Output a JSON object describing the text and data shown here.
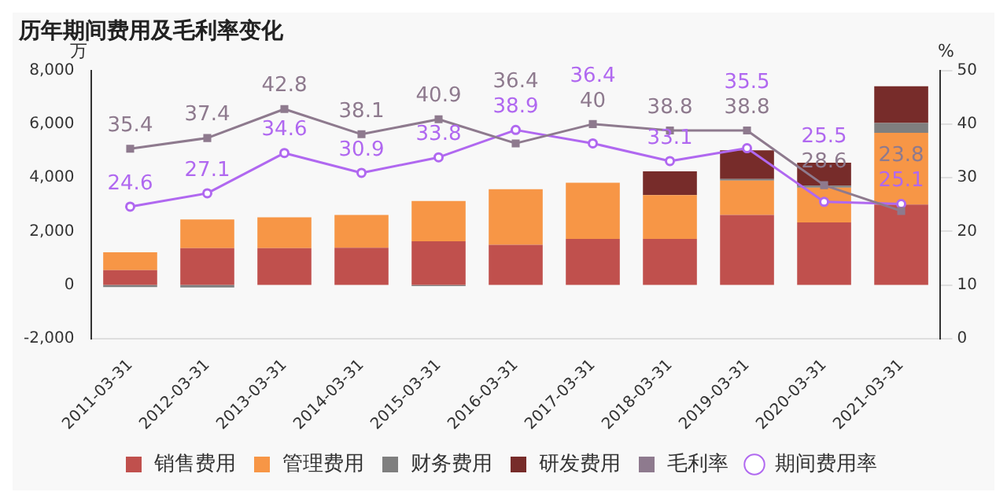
{
  "chart_data": {
    "type": "bar",
    "title": "历年期间费用及毛利率变化",
    "ylabel": "万",
    "y2label": "%",
    "stacked": true,
    "categories": [
      "2011-03-31",
      "2012-03-31",
      "2013-03-31",
      "2014-03-31",
      "2015-03-31",
      "2016-03-31",
      "2017-03-31",
      "2018-03-31",
      "2019-03-31",
      "2020-03-31",
      "2021-03-31"
    ],
    "series": [
      {
        "name": "销售费用",
        "color": "#c0504d",
        "values": [
          550,
          1370,
          1370,
          1390,
          1630,
          1500,
          1720,
          1720,
          2610,
          2330,
          3000
        ]
      },
      {
        "name": "管理费用",
        "color": "#f79646",
        "values": [
          670,
          1070,
          1150,
          1220,
          1500,
          2070,
          2090,
          1630,
          1280,
          1300,
          2670
        ]
      },
      {
        "name": "财务费用",
        "color": "#7f7f7f",
        "values": [
          -80,
          -90,
          null,
          null,
          -40,
          null,
          null,
          null,
          60,
          70,
          370
        ]
      },
      {
        "name": "研发费用",
        "color": "#772c2a",
        "values": [
          null,
          null,
          null,
          null,
          null,
          null,
          null,
          890,
          1070,
          860,
          1370
        ]
      },
      {
        "name": "毛利率",
        "type": "line",
        "axis": "y2",
        "color": "#8e7a8e",
        "marker": "square",
        "values": [
          35.4,
          37.4,
          42.8,
          38.1,
          40.9,
          36.4,
          40,
          38.8,
          38.8,
          28.6,
          23.8
        ],
        "value_labels": [
          "35.4",
          "37.4",
          "42.8",
          "38.1",
          "40.9",
          "36.4",
          "40",
          "38.8",
          "38.8",
          "28.6",
          "23.8"
        ]
      },
      {
        "name": "期间费用率",
        "type": "line",
        "axis": "y2",
        "color": "#b068f0",
        "marker": "circle",
        "values": [
          24.6,
          27.1,
          34.6,
          30.9,
          33.8,
          38.9,
          36.4,
          33.1,
          35.5,
          25.5,
          25.1
        ],
        "value_labels": [
          "24.6",
          "27.1",
          "34.6",
          "30.9",
          "33.8",
          "38.9",
          "36.4",
          "33.1",
          "35.5",
          "25.5",
          "25.1"
        ]
      }
    ],
    "ylim": [
      -2000,
      8000
    ],
    "yticks": [
      {
        "value": -2000,
        "label": "-2,000"
      },
      0,
      {
        "value": 2000,
        "label": "2,000"
      },
      {
        "value": 4000,
        "label": "4,000"
      },
      {
        "value": 6000,
        "label": "6,000"
      },
      {
        "value": 8000,
        "label": "8,000"
      }
    ],
    "y2lim": [
      0,
      50
    ],
    "y2ticks": [
      0,
      10,
      20,
      30,
      40,
      50
    ],
    "grid": false,
    "legend": "bottom"
  }
}
